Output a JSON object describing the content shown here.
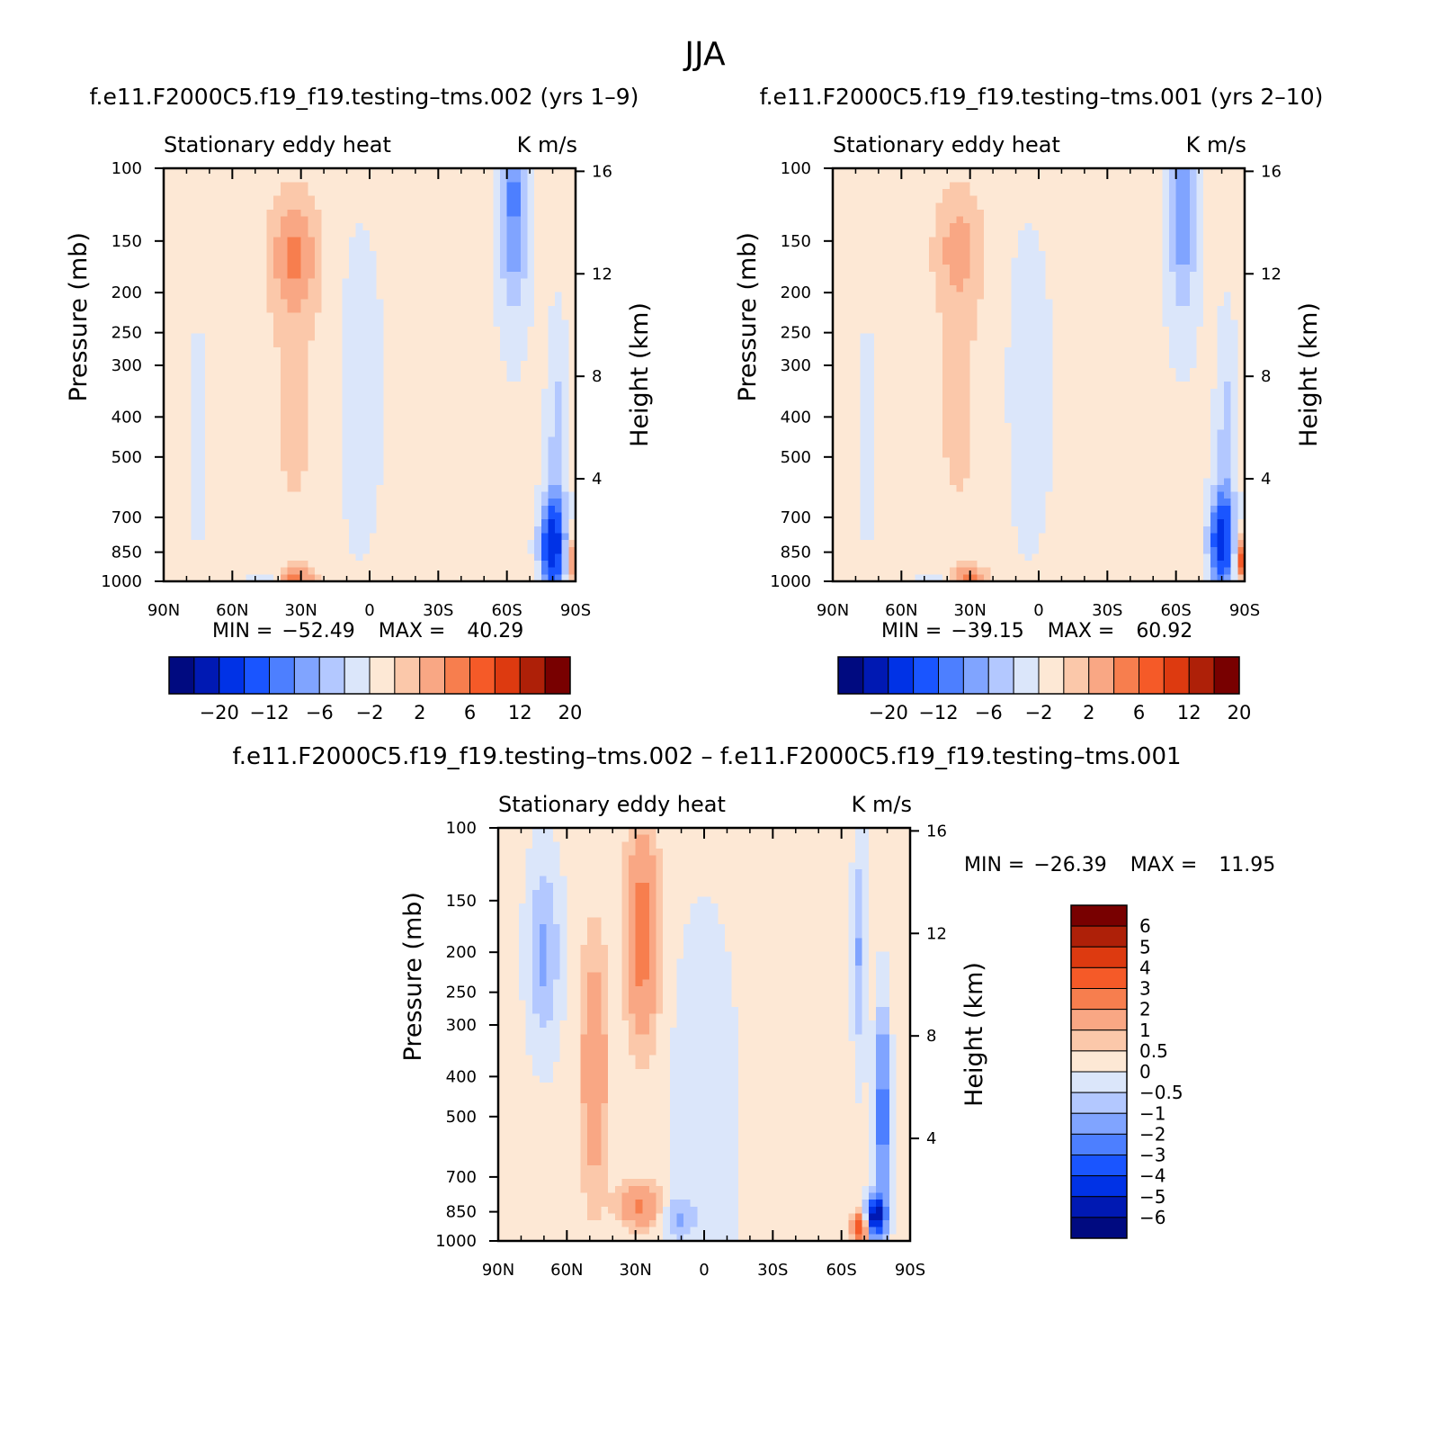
{
  "figure": {
    "title": "JJA"
  },
  "colors": {
    "abs_palette": [
      "#000a80",
      "#0019b3",
      "#0032e6",
      "#1a55ff",
      "#4d7fff",
      "#80a4ff",
      "#b3c8ff",
      "#dbe6fa",
      "#fde8d5",
      "#fbc8aa",
      "#f9a784",
      "#f77e4e",
      "#f55a28",
      "#dd3a10",
      "#ae2008",
      "#780000"
    ],
    "diff_palette": [
      "#000a80",
      "#0019b3",
      "#0032e6",
      "#1a55ff",
      "#4d7fff",
      "#80a4ff",
      "#b3c8ff",
      "#dbe6fa",
      "#fde8d5",
      "#fbc8aa",
      "#f9a784",
      "#f77e4e",
      "#f55a28",
      "#dd3a10",
      "#ae2008",
      "#780000"
    ]
  },
  "chart_data": [
    {
      "type": "heatmap",
      "panel": "top-left",
      "case_title": "f.e11.F2000C5.f19_f19.testing–tms.002 (yrs 1–9)",
      "left_label": "Stationary eddy heat",
      "right_label": "K m/s",
      "xlabel": "",
      "ylabel": "Pressure (mb)",
      "y2label": "Height (km)",
      "x_ticks": [
        "90N",
        "60N",
        "30N",
        "0",
        "30S",
        "60S",
        "90S"
      ],
      "x_values": [
        90,
        60,
        30,
        0,
        -30,
        -60,
        -90
      ],
      "y_ticks": [
        100,
        150,
        200,
        250,
        300,
        400,
        500,
        700,
        850,
        1000
      ],
      "y_scale": "log",
      "ylim": [
        1000,
        100
      ],
      "y2_ticks": [
        16,
        12,
        8,
        4
      ],
      "min_label": "MIN =",
      "min_value": "−52.49",
      "max_label": "MAX =",
      "max_value": "40.29",
      "colorbar": {
        "orientation": "horizontal",
        "levels": [
          "−20",
          "−12",
          "−6",
          "−2",
          "2",
          "6",
          "12",
          "20"
        ]
      },
      "features": [
        {
          "lat": 33,
          "p": 160,
          "value": 5.5
        },
        {
          "lat": 32,
          "p": 980,
          "value": 6
        },
        {
          "lat": -63,
          "p": 120,
          "value": -7
        },
        {
          "lat": -80,
          "p": 820,
          "value": -15
        }
      ]
    },
    {
      "type": "heatmap",
      "panel": "top-right",
      "case_title": "f.e11.F2000C5.f19_f19.testing–tms.001 (yrs 2–10)",
      "left_label": "Stationary eddy heat",
      "right_label": "K m/s",
      "xlabel": "",
      "ylabel": "Pressure (mb)",
      "y2label": "Height (km)",
      "x_ticks": [
        "90N",
        "60N",
        "30N",
        "0",
        "30S",
        "60S",
        "90S"
      ],
      "x_values": [
        90,
        60,
        30,
        0,
        -30,
        -60,
        -90
      ],
      "y_ticks": [
        100,
        150,
        200,
        250,
        300,
        400,
        500,
        700,
        850,
        1000
      ],
      "y_scale": "log",
      "ylim": [
        1000,
        100
      ],
      "y2_ticks": [
        16,
        12,
        8,
        4
      ],
      "min_label": "MIN =",
      "min_value": "−39.15",
      "max_label": "MAX =",
      "max_value": "60.92",
      "colorbar": {
        "orientation": "horizontal",
        "levels": [
          "−20",
          "−12",
          "−6",
          "−2",
          "2",
          "6",
          "12",
          "20"
        ]
      },
      "features": [
        {
          "lat": 35,
          "p": 155,
          "value": 4
        },
        {
          "lat": 30,
          "p": 980,
          "value": 6
        },
        {
          "lat": -63,
          "p": 125,
          "value": -6
        },
        {
          "lat": -80,
          "p": 800,
          "value": -14
        }
      ]
    },
    {
      "type": "heatmap",
      "panel": "bottom",
      "case_title": "f.e11.F2000C5.f19_f19.testing–tms.002 – f.e11.F2000C5.f19_f19.testing–tms.001",
      "left_label": "Stationary eddy heat",
      "right_label": "K m/s",
      "xlabel": "",
      "ylabel": "Pressure (mb)",
      "y2label": "Height (km)",
      "x_ticks": [
        "90N",
        "60N",
        "30N",
        "0",
        "30S",
        "60S",
        "90S"
      ],
      "x_values": [
        90,
        60,
        30,
        0,
        -30,
        -60,
        -90
      ],
      "y_ticks": [
        100,
        150,
        200,
        250,
        300,
        400,
        500,
        700,
        850,
        1000
      ],
      "y_scale": "log",
      "ylim": [
        1000,
        100
      ],
      "y2_ticks": [
        16,
        12,
        8,
        4
      ],
      "min_label": "MIN =",
      "min_value": "−26.39",
      "max_label": "MAX =",
      "max_value": "11.95",
      "colorbar": {
        "orientation": "vertical",
        "levels": [
          "6",
          "5",
          "4",
          "3",
          "2",
          "1",
          "0.5",
          "0",
          "−0.5",
          "−1",
          "−2",
          "−3",
          "−4",
          "−5",
          "−6"
        ]
      },
      "features": [
        {
          "lat": 27,
          "p": 180,
          "value": 2.5
        },
        {
          "lat": 28,
          "p": 820,
          "value": 2
        },
        {
          "lat": -75,
          "p": 870,
          "value": -6
        },
        {
          "lat": -78,
          "p": 500,
          "value": -3
        }
      ]
    }
  ]
}
